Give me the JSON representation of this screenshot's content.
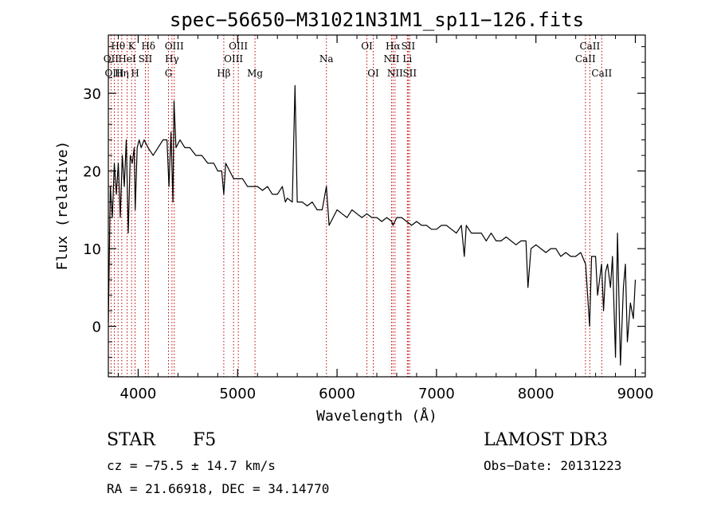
{
  "chart_data": {
    "type": "line",
    "title": "spec−56650−M31021N31M1_sp11−126.fits",
    "xlabel": "Wavelength (Å)",
    "ylabel": "Flux (relative)",
    "xlim": [
      3700,
      9100
    ],
    "ylim": [
      -6.5,
      37.5
    ],
    "x_ticks": [
      4000,
      5000,
      6000,
      7000,
      8000,
      9000
    ],
    "y_ticks": [
      0,
      10,
      20,
      30
    ],
    "grid": false,
    "line_color": "#000000",
    "marker_line_color": "#c00000",
    "series": [
      {
        "name": "flux",
        "x": [
          3700,
          3720,
          3740,
          3760,
          3780,
          3800,
          3820,
          3840,
          3860,
          3880,
          3900,
          3920,
          3940,
          3960,
          3970,
          3990,
          4010,
          4030,
          4060,
          4100,
          4150,
          4200,
          4250,
          4290,
          4310,
          4330,
          4350,
          4360,
          4380,
          4420,
          4470,
          4520,
          4580,
          4640,
          4700,
          4760,
          4800,
          4840,
          4861,
          4880,
          4920,
          4960,
          5000,
          5050,
          5100,
          5150,
          5200,
          5250,
          5300,
          5350,
          5400,
          5450,
          5480,
          5500,
          5550,
          5577,
          5600,
          5650,
          5700,
          5750,
          5800,
          5850,
          5893,
          5920,
          5960,
          6000,
          6050,
          6100,
          6150,
          6200,
          6250,
          6300,
          6350,
          6400,
          6450,
          6500,
          6550,
          6563,
          6600,
          6650,
          6700,
          6750,
          6800,
          6850,
          6900,
          6950,
          7000,
          7050,
          7100,
          7150,
          7200,
          7250,
          7280,
          7300,
          7350,
          7400,
          7450,
          7500,
          7550,
          7600,
          7650,
          7700,
          7750,
          7800,
          7850,
          7900,
          7920,
          7950,
          8000,
          8050,
          8100,
          8150,
          8200,
          8250,
          8300,
          8350,
          8400,
          8450,
          8500,
          8540,
          8560,
          8600,
          8620,
          8660,
          8680,
          8700,
          8720,
          8750,
          8770,
          8800,
          8820,
          8850,
          8880,
          8900,
          8920,
          8950,
          8980,
          9000
        ],
        "values": [
          0.5,
          18,
          14,
          21,
          17,
          21,
          14,
          22,
          18,
          24,
          12,
          22,
          21,
          23,
          15,
          23,
          24,
          23,
          24,
          23,
          22,
          23,
          24,
          24,
          18,
          25,
          16,
          29,
          23,
          24,
          23,
          23,
          22,
          22,
          21,
          21,
          20,
          20,
          17,
          21,
          20,
          19,
          19,
          19,
          18,
          18,
          18,
          17.5,
          18,
          17,
          17,
          18,
          16,
          16.5,
          16,
          31,
          16,
          16,
          15.5,
          16,
          15,
          15,
          18,
          13,
          14,
          15,
          14.5,
          14,
          15,
          14.5,
          14,
          14.5,
          14,
          14,
          13.5,
          14,
          13.5,
          13,
          14,
          14,
          13.5,
          13,
          13.5,
          13,
          13,
          12.5,
          12.5,
          13,
          13,
          12.5,
          12,
          13,
          9,
          13,
          12,
          12,
          12,
          11,
          12,
          11,
          11,
          11.5,
          11,
          10.5,
          11,
          11,
          5,
          10,
          10.5,
          10,
          9.5,
          10,
          10,
          9,
          9.5,
          9,
          9,
          9.5,
          8,
          0,
          9,
          9,
          4,
          8,
          2,
          7,
          8,
          5,
          9,
          -4,
          12,
          -5,
          5,
          8,
          -2,
          3,
          1,
          6
        ]
      }
    ],
    "lines": [
      {
        "name": "Hθ",
        "wavelength": 3798,
        "row": 1
      },
      {
        "name": "OII",
        "wavelength": 3727,
        "row": 2
      },
      {
        "name": "OIII",
        "wavelength": 3760,
        "row": 3
      },
      {
        "name": "K",
        "wavelength": 3934,
        "row": 1
      },
      {
        "name": "HeI",
        "wavelength": 3889,
        "row": 2
      },
      {
        "name": "Hη",
        "wavelength": 3835,
        "row": 3
      },
      {
        "name": "Hδ",
        "wavelength": 4102,
        "row": 1
      },
      {
        "name": "SII",
        "wavelength": 4072,
        "row": 2
      },
      {
        "name": "H",
        "wavelength": 3969,
        "row": 3
      },
      {
        "name": "OIII",
        "wavelength": 4363,
        "row": 1
      },
      {
        "name": "Hγ",
        "wavelength": 4340,
        "row": 2
      },
      {
        "name": "G",
        "wavelength": 4305,
        "row": 3
      },
      {
        "name": "OIII",
        "wavelength": 5007,
        "row": 1
      },
      {
        "name": "OIII",
        "wavelength": 4959,
        "row": 2
      },
      {
        "name": "Hβ",
        "wavelength": 4861,
        "row": 3
      },
      {
        "name": "Mg",
        "wavelength": 5175,
        "row": 3
      },
      {
        "name": "Na",
        "wavelength": 5893,
        "row": 2
      },
      {
        "name": "OI",
        "wavelength": 6300,
        "row": 1
      },
      {
        "name": "OI",
        "wavelength": 6364,
        "row": 3
      },
      {
        "name": "Hα",
        "wavelength": 6563,
        "row": 1
      },
      {
        "name": "SII",
        "wavelength": 6716,
        "row": 1
      },
      {
        "name": "NII",
        "wavelength": 6548,
        "row": 2
      },
      {
        "name": "Li",
        "wavelength": 6707,
        "row": 2
      },
      {
        "name": "NII",
        "wavelength": 6583,
        "row": 3
      },
      {
        "name": "SII",
        "wavelength": 6731,
        "row": 3
      },
      {
        "name": "CaII",
        "wavelength": 8542,
        "row": 1
      },
      {
        "name": "CaII",
        "wavelength": 8498,
        "row": 2
      },
      {
        "name": "CaII",
        "wavelength": 8662,
        "row": 3
      }
    ]
  },
  "info": {
    "object_class": "STAR",
    "subclass": "F5",
    "survey": "LAMOST DR3",
    "redshift": "cz = −75.5 ± 14.7 km/s",
    "obs_date": "Obs−Date: 20131223",
    "coords": "RA =  21.66918, DEC =  34.14770"
  }
}
